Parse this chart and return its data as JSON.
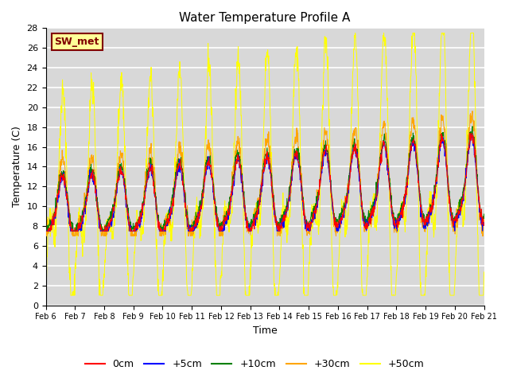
{
  "title": "Water Temperature Profile A",
  "xlabel": "Time",
  "ylabel": "Temperature (C)",
  "annotation": "SW_met",
  "ylim": [
    0,
    28
  ],
  "yticks": [
    0,
    2,
    4,
    6,
    8,
    10,
    12,
    14,
    16,
    18,
    20,
    22,
    24,
    26,
    28
  ],
  "xtick_labels": [
    "Feb 6",
    "Feb 7",
    "Feb 8",
    "Feb 9",
    "Feb 10",
    "Feb 11",
    "Feb 12",
    "Feb 13",
    "Feb 14",
    "Feb 15",
    "Feb 16",
    "Feb 17",
    "Feb 18",
    "Feb 19",
    "Feb 20",
    "Feb 21"
  ],
  "series_colors": [
    "red",
    "blue",
    "green",
    "#FFA500",
    "yellow"
  ],
  "series_labels": [
    "0cm",
    "+5cm",
    "+10cm",
    "+30cm",
    "+50cm"
  ],
  "plot_bg_color": "#d8d8d8",
  "grid_color": "white",
  "annotation_box_color": "#FFFF99",
  "annotation_text_color": "#800000",
  "annotation_border_color": "#800000"
}
